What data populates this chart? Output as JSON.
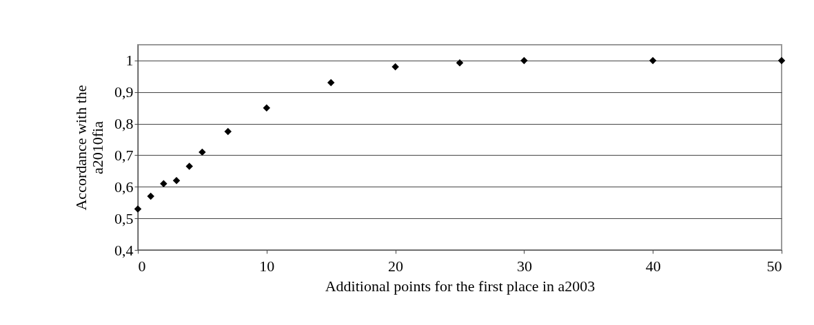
{
  "chart_data": {
    "type": "scatter",
    "xlabel": "Additional points for the first place in a2003",
    "ylabel": "Accordance with the\na2010fia",
    "x": [
      0,
      1,
      2,
      3,
      4,
      5,
      7,
      10,
      15,
      20,
      25,
      30,
      40,
      50
    ],
    "series": [
      {
        "color": "#000000",
        "values": [
          0.53,
          0.57,
          0.61,
          0.62,
          0.665,
          0.71,
          0.775,
          0.85,
          0.93,
          0.98,
          0.993,
          1,
          1,
          1
        ]
      }
    ],
    "marker": "diamond",
    "grid": "y",
    "xlim": [
      0,
      50
    ],
    "xticks": [
      0,
      10,
      20,
      30,
      40,
      50
    ],
    "ylim": [
      0.4,
      1.05
    ],
    "yticks": [
      {
        "value": 0.4,
        "label": "0,4"
      },
      {
        "value": 0.5,
        "label": "0,5"
      },
      {
        "value": 0.6,
        "label": "0,6"
      },
      {
        "value": 0.7,
        "label": "0,7"
      },
      {
        "value": 0.8,
        "label": "0,8"
      },
      {
        "value": 0.9,
        "label": "0,9"
      },
      {
        "value": 1,
        "label": "1"
      }
    ]
  }
}
